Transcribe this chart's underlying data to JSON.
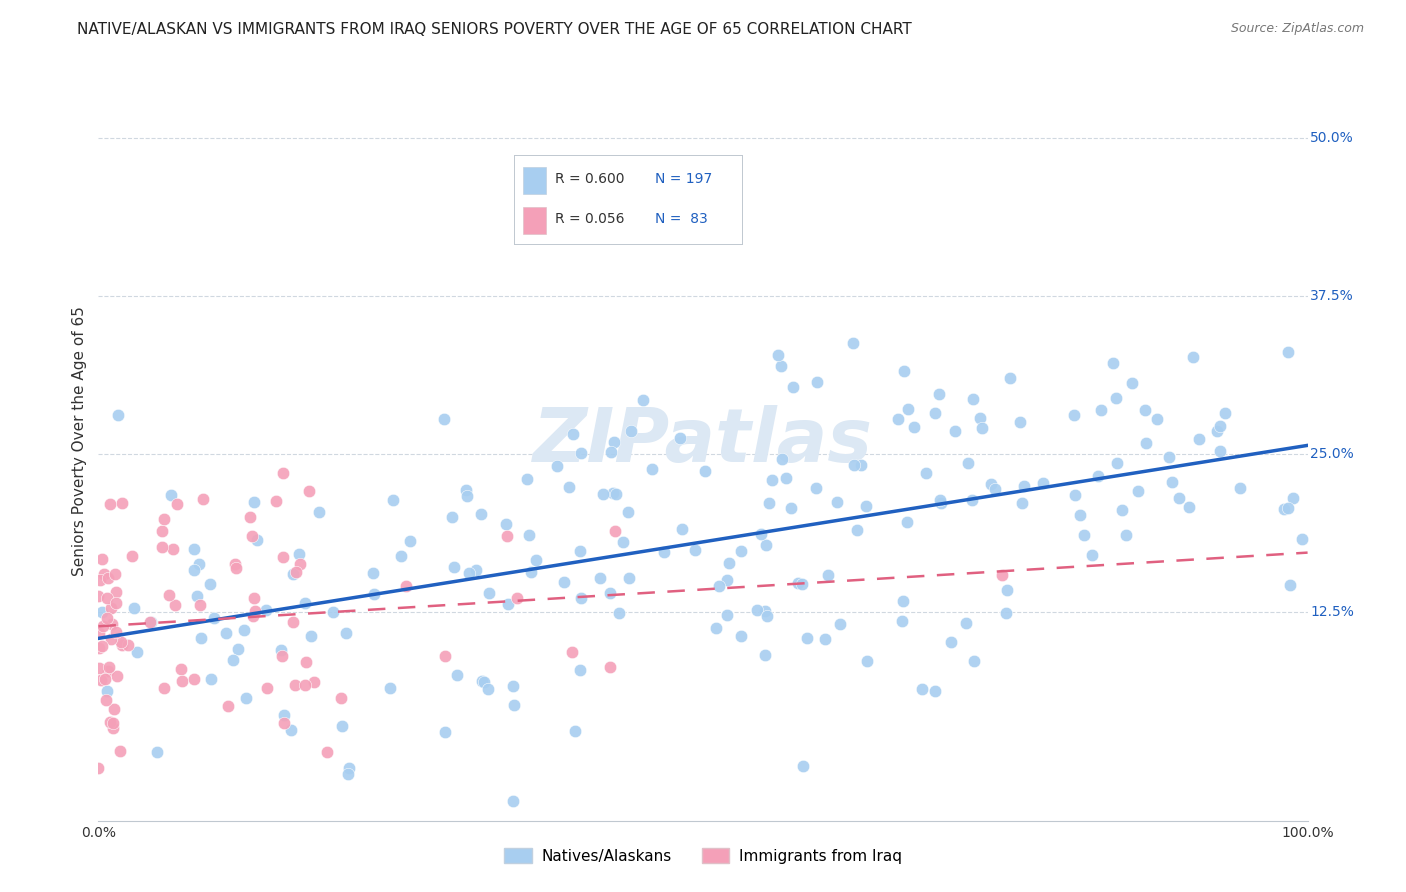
{
  "title": "NATIVE/ALASKAN VS IMMIGRANTS FROM IRAQ SENIORS POVERTY OVER THE AGE OF 65 CORRELATION CHART",
  "source": "Source: ZipAtlas.com",
  "ylabel": "Seniors Poverty Over the Age of 65",
  "ytick_labels": [
    "12.5%",
    "25.0%",
    "37.5%",
    "50.0%"
  ],
  "ytick_values": [
    0.125,
    0.25,
    0.375,
    0.5
  ],
  "xlim": [
    0.0,
    1.0
  ],
  "ylim": [
    -0.04,
    0.56
  ],
  "legend_blue_R": "0.600",
  "legend_blue_N": "197",
  "legend_pink_R": "0.056",
  "legend_pink_N": " 83",
  "blue_color": "#a8cef0",
  "pink_color": "#f4a0b8",
  "blue_line_color": "#2060c0",
  "pink_line_color": "#e06080",
  "watermark_color": "#dce8f4",
  "legend_label_blue": "Natives/Alaskans",
  "legend_label_pink": "Immigrants from Iraq",
  "title_fontsize": 11,
  "source_fontsize": 9,
  "n_blue": 197,
  "n_pink": 83
}
